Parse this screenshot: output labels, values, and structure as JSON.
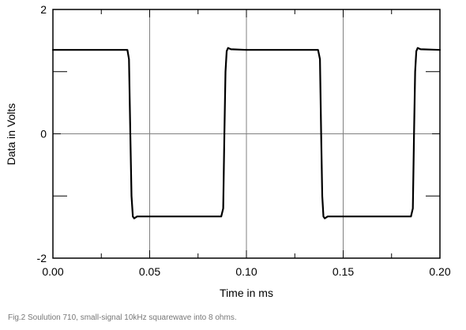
{
  "caption": "Fig.2 Soulution 710, small-signal 10kHz squarewave into 8 ohms.",
  "chart_data": {
    "type": "line",
    "title": "",
    "xlabel": "Time in ms",
    "ylabel": "Data in Volts",
    "xlim": [
      0.0,
      0.2
    ],
    "ylim": [
      -2,
      2
    ],
    "xticks": [
      "0.00",
      "0.05",
      "0.10",
      "0.15",
      "0.20"
    ],
    "yticks": [
      "2",
      "0",
      "-2"
    ],
    "x_tick_values": [
      0.0,
      0.05,
      0.1,
      0.15,
      0.2
    ],
    "y_tick_values": [
      2,
      0,
      -2
    ],
    "x_minor_ticks": [
      0.025,
      0.075,
      0.125,
      0.175
    ],
    "y_minor_ticks": [
      1,
      -1
    ],
    "grid": true,
    "legend": "none",
    "line_color": "#000000",
    "series": [
      {
        "x": [
          0.0,
          0.0385,
          0.0393,
          0.04,
          0.0406,
          0.0413,
          0.042,
          0.0435,
          0.05,
          0.06,
          0.07,
          0.087,
          0.088,
          0.0886,
          0.0892,
          0.0898,
          0.0905,
          0.092,
          0.1,
          0.11,
          0.12,
          0.137,
          0.138,
          0.1386,
          0.1392,
          0.1398,
          0.1405,
          0.142,
          0.15,
          0.158,
          0.165,
          0.185,
          0.186,
          0.1866,
          0.1872,
          0.1878,
          0.1885,
          0.19,
          0.2
        ],
        "y": [
          1.35,
          1.35,
          1.2,
          0.0,
          -1.0,
          -1.33,
          -1.36,
          -1.33,
          -1.33,
          -1.33,
          -1.33,
          -1.33,
          -1.2,
          0.0,
          1.0,
          1.33,
          1.38,
          1.36,
          1.35,
          1.35,
          1.35,
          1.35,
          1.2,
          0.0,
          -1.0,
          -1.33,
          -1.36,
          -1.33,
          -1.33,
          -1.33,
          -1.33,
          -1.33,
          -1.2,
          0.0,
          1.0,
          1.33,
          1.38,
          1.36,
          1.35
        ]
      }
    ]
  }
}
